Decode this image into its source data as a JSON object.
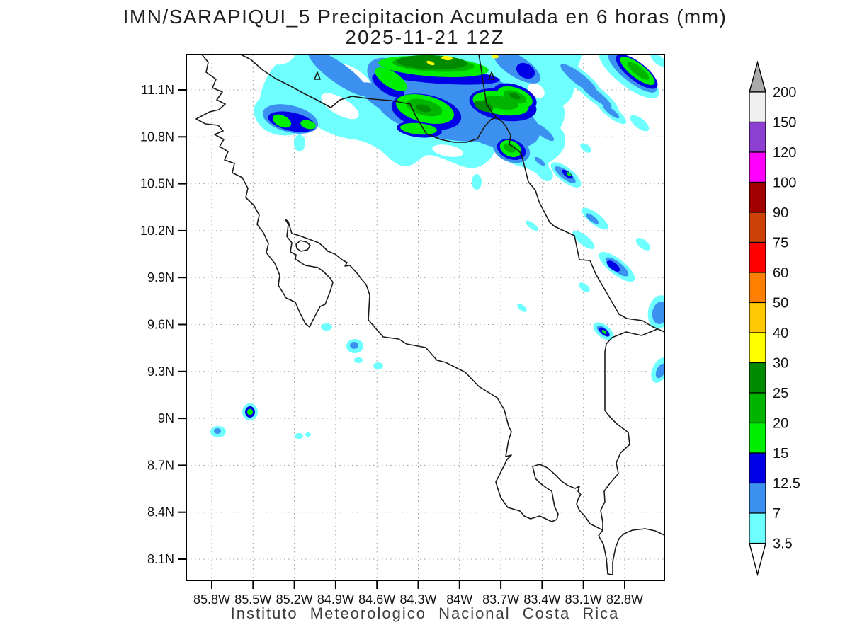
{
  "title": "IMN/SARAPIQUI_5 Precipitacion Acumulada en 6 horas (mm)",
  "subtitle": "2025-11-21 12Z",
  "footer": "Instituto Meteorologico Nacional Costa Rica",
  "chart_data": {
    "type": "heatmap",
    "title": "IMN/SARAPIQUI_5 Precipitacion Acumulada en 6 horas (mm)",
    "subtitle": "2025-11-21 12Z",
    "units": "mm",
    "geography": "Costa Rica coastline, Nicaragua border, Panama border, Lake Nicaragua shore",
    "grid": "dotted gray graticule at every labeled tick",
    "legend_position": "right",
    "x_tick_labels": [
      "85.8W",
      "85.5W",
      "85.2W",
      "84.9W",
      "84.6W",
      "84.3W",
      "84W",
      "83.7W",
      "83.4W",
      "83.1W",
      "82.8W"
    ],
    "y_tick_labels": [
      "11.1N",
      "10.8N",
      "10.5N",
      "10.2N",
      "9.9N",
      "9.6N",
      "9.3N",
      "9N",
      "8.7N",
      "8.4N",
      "8.1N"
    ],
    "lon_range_deg_w": [
      86.0,
      82.5
    ],
    "lat_range_deg_n": [
      7.97,
      11.33
    ],
    "colorbar": {
      "tick_labels_top_to_bottom": [
        "200",
        "150",
        "120",
        "100",
        "90",
        "75",
        "60",
        "50",
        "40",
        "30",
        "25",
        "20",
        "15",
        "12.5",
        "7",
        "3.5"
      ],
      "above_max_color": "#AAAAAA",
      "below_min_color": "#FFFFFF",
      "segments_top_to_bottom": [
        {
          "from": 150,
          "to": 200,
          "color": "#F0F0F0"
        },
        {
          "from": 120,
          "to": 150,
          "color": "#8C3FD0"
        },
        {
          "from": 100,
          "to": 120,
          "color": "#FF00FF"
        },
        {
          "from": 90,
          "to": 100,
          "color": "#A00000"
        },
        {
          "from": 75,
          "to": 90,
          "color": "#CC4208"
        },
        {
          "from": 60,
          "to": 75,
          "color": "#FF0000"
        },
        {
          "from": 50,
          "to": 60,
          "color": "#FF8000"
        },
        {
          "from": 40,
          "to": 50,
          "color": "#FFC800"
        },
        {
          "from": 30,
          "to": 40,
          "color": "#FFFF00"
        },
        {
          "from": 25,
          "to": 30,
          "color": "#008A00"
        },
        {
          "from": 20,
          "to": 25,
          "color": "#00B400"
        },
        {
          "from": 15,
          "to": 20,
          "color": "#00EE00"
        },
        {
          "from": 12.5,
          "to": 15,
          "color": "#0000E6"
        },
        {
          "from": 7,
          "to": 12.5,
          "color": "#3C91F0"
        },
        {
          "from": 3.5,
          "to": 7,
          "color": "#6EFFFF"
        }
      ]
    },
    "precipitation_features": [
      {
        "area": "band along the northern (Nicaragua) border and Caribbean slope",
        "lat": "10.6N-11.3N",
        "lon": "85.7W-83.2W",
        "intensity_mm": "3.5-40",
        "notes": "widespread 7-15 mm with embedded 15-30 mm cores; small 30-40 mm (yellow) spots at the top edge near 84.3W-83.9W"
      },
      {
        "area": "SE-oriented streaks offshore of the Caribbean coast",
        "lat": "9.4N-11.1N",
        "lon": "83.7W-82.5W",
        "intensity_mm": "3.5-20",
        "notes": "narrow cyan bands with blue 7-15 mm cores, isolated 15-20 mm flecks"
      },
      {
        "area": "isolated convective cells over the Pacific SW of the Nicoya Peninsula",
        "lat": "8.8N-9.6N",
        "lon": "85.7W-84.6W",
        "intensity_mm": "3.5-20",
        "notes": "small cells; one cell near 9.05N 85.35W reaches 15-20 mm"
      }
    ]
  }
}
